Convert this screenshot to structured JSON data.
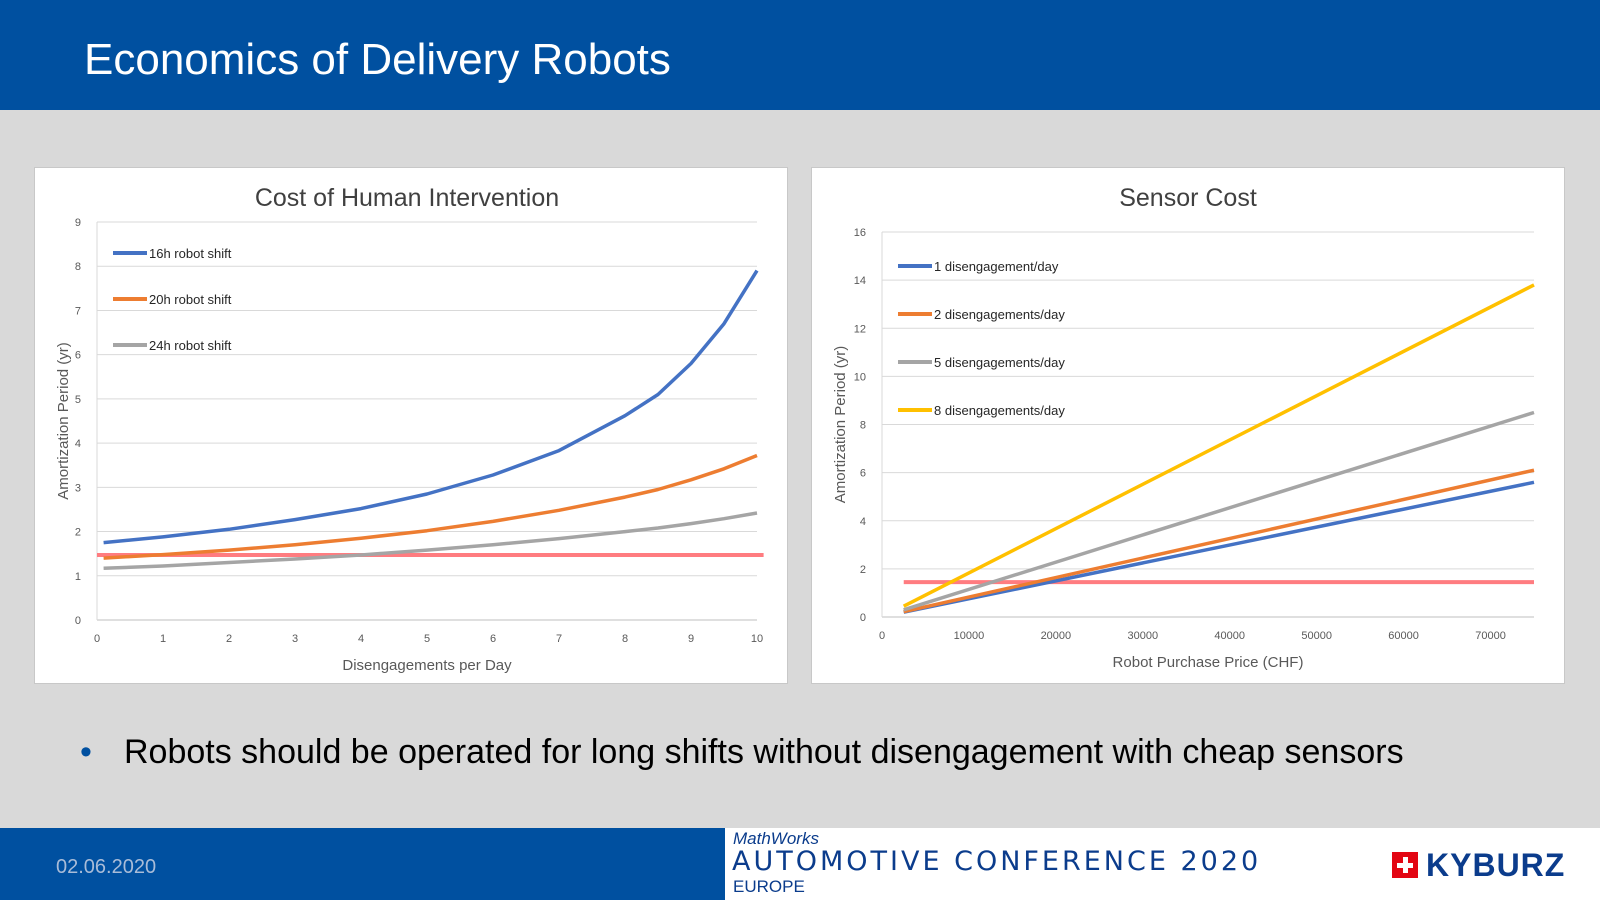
{
  "slide": {
    "title": "Economics of Delivery Robots",
    "bullet": "Robots should be operated for long shifts without disengagement with cheap sensors",
    "date": "02.06.2020",
    "conference": {
      "brand": "MathWorks",
      "title": "AUTOMOTIVE CONFERENCE 2020",
      "subtitle": "EUROPE"
    },
    "company": "KYBURZ",
    "colors": {
      "header": "#0050a0",
      "accent": "#0050a0"
    }
  },
  "chart_data": [
    {
      "type": "line",
      "title": "Cost of Human Intervention",
      "xlabel": "Disengagements per Day",
      "ylabel": "Amortization Period (yr)",
      "xlim": [
        0,
        10
      ],
      "ylim": [
        0,
        9
      ],
      "xticks": [
        0,
        1,
        2,
        3,
        4,
        5,
        6,
        7,
        8,
        9,
        10
      ],
      "yticks": [
        0,
        1,
        2,
        3,
        4,
        5,
        6,
        7,
        8,
        9
      ],
      "grid": true,
      "legend": "top-left",
      "x": [
        0.1,
        1,
        2,
        3,
        4,
        5,
        6,
        7,
        8,
        8.5,
        9,
        9.5,
        10
      ],
      "series": [
        {
          "name": "16h robot shift",
          "color": "#4472c4",
          "values": [
            1.75,
            1.88,
            2.05,
            2.27,
            2.52,
            2.85,
            3.28,
            3.83,
            4.62,
            5.1,
            5.8,
            6.7,
            7.9
          ]
        },
        {
          "name": "20h robot shift",
          "color": "#ed7d31",
          "values": [
            1.4,
            1.48,
            1.58,
            1.7,
            1.85,
            2.02,
            2.23,
            2.48,
            2.78,
            2.95,
            3.17,
            3.42,
            3.72
          ]
        },
        {
          "name": "24h robot shift",
          "color": "#a5a5a5",
          "values": [
            1.17,
            1.22,
            1.3,
            1.38,
            1.47,
            1.58,
            1.7,
            1.84,
            2.0,
            2.08,
            2.18,
            2.29,
            2.42
          ]
        }
      ],
      "reference_line": {
        "y": 1.47,
        "color": "#ff7c80",
        "x_range": [
          0,
          10.1
        ]
      }
    },
    {
      "type": "line",
      "title": "Sensor Cost",
      "xlabel": "Robot Purchase Price (CHF)",
      "ylabel": "Amortization Period (yr)",
      "xlim": [
        0,
        75000
      ],
      "ylim": [
        0,
        16
      ],
      "xticks": [
        0,
        10000,
        20000,
        30000,
        40000,
        50000,
        60000,
        70000
      ],
      "yticks": [
        0,
        2,
        4,
        6,
        8,
        10,
        12,
        14,
        16
      ],
      "grid": true,
      "legend": "top-left",
      "x": [
        2500,
        75000
      ],
      "series": [
        {
          "name": "1 disengagement/day",
          "color": "#4472c4",
          "values": [
            0.2,
            5.6
          ]
        },
        {
          "name": "2 disengagements/day",
          "color": "#ed7d31",
          "values": [
            0.22,
            6.1
          ]
        },
        {
          "name": "5 disengagements/day",
          "color": "#a5a5a5",
          "values": [
            0.3,
            8.5
          ]
        },
        {
          "name": "8 disengagements/day",
          "color": "#ffc000",
          "values": [
            0.45,
            13.8
          ]
        }
      ],
      "reference_line": {
        "y": 1.45,
        "color": "#ff7c80",
        "x_range": [
          2500,
          75000
        ]
      }
    }
  ]
}
